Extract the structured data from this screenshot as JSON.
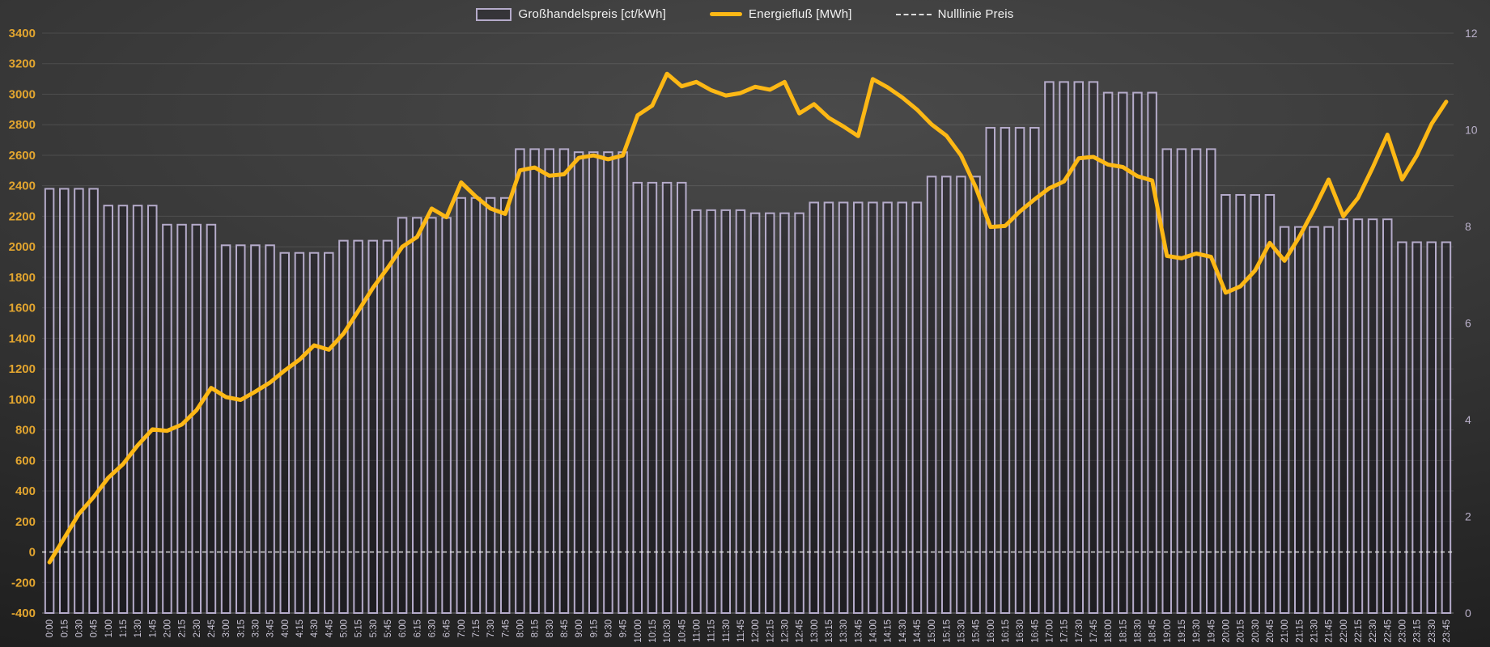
{
  "legend": {
    "price_label": "Großhandelspreis [ct/kWh]",
    "flow_label": "Energiefluß [MWh]",
    "zero_label": "Nulllinie Preis"
  },
  "colors": {
    "bar_stroke": "#b5abca",
    "bar_fill": "rgba(18,14,26,0.30)",
    "line": "#fdb815",
    "zero_line": "#e6e6e6",
    "grid": "rgba(255,255,255,0.11)",
    "axis_bottom": "rgba(255,255,255,0.35)",
    "left_tick_text": "#e2a52f",
    "right_tick_text": "#b9b0c9",
    "x_tick_text": "#ccc7d8"
  },
  "chart_data": {
    "type": "bar+line combo",
    "x_categories": [
      "0:00",
      "0:15",
      "0:30",
      "0:45",
      "1:00",
      "1:15",
      "1:30",
      "1:45",
      "2:00",
      "2:15",
      "2:30",
      "2:45",
      "3:00",
      "3:15",
      "3:30",
      "3:45",
      "4:00",
      "4:15",
      "4:30",
      "4:45",
      "5:00",
      "5:15",
      "5:30",
      "5:45",
      "6:00",
      "6:15",
      "6:30",
      "6:45",
      "7:00",
      "7:15",
      "7:30",
      "7:45",
      "8:00",
      "8:15",
      "8:30",
      "8:45",
      "9:00",
      "9:15",
      "9:30",
      "9:45",
      "10:00",
      "10:15",
      "10:30",
      "10:45",
      "11:00",
      "11:15",
      "11:30",
      "11:45",
      "12:00",
      "12:15",
      "12:30",
      "12:45",
      "13:00",
      "13:15",
      "13:30",
      "13:45",
      "14:00",
      "14:15",
      "14:30",
      "14:45",
      "15:00",
      "15:15",
      "15:30",
      "15:45",
      "16:00",
      "16:15",
      "16:30",
      "16:45",
      "17:00",
      "17:15",
      "17:30",
      "17:45",
      "18:00",
      "18:15",
      "18:30",
      "18:45",
      "19:00",
      "19:15",
      "19:30",
      "19:45",
      "20:00",
      "20:15",
      "20:30",
      "20:45",
      "21:00",
      "21:15",
      "21:30",
      "21:45",
      "22:00",
      "22:15",
      "22:30",
      "22:45",
      "23:00",
      "23:15",
      "23:30",
      "23:45"
    ],
    "series": [
      {
        "name": "Großhandelspreis [ct/kWh]",
        "type": "bar",
        "axis": "left",
        "values": [
          2380,
          2380,
          2380,
          2380,
          2270,
          2270,
          2270,
          2270,
          2145,
          2145,
          2145,
          2145,
          2010,
          2010,
          2010,
          2010,
          1960,
          1960,
          1960,
          1960,
          2040,
          2040,
          2040,
          2040,
          2190,
          2190,
          2190,
          2190,
          2320,
          2320,
          2320,
          2320,
          2640,
          2640,
          2640,
          2640,
          2620,
          2620,
          2620,
          2620,
          2420,
          2420,
          2420,
          2420,
          2240,
          2240,
          2240,
          2240,
          2220,
          2220,
          2220,
          2220,
          2290,
          2290,
          2290,
          2290,
          2290,
          2290,
          2290,
          2290,
          2460,
          2460,
          2460,
          2460,
          2780,
          2780,
          2780,
          2780,
          3080,
          3080,
          3080,
          3080,
          3010,
          3010,
          3010,
          3010,
          2640,
          2640,
          2640,
          2640,
          2340,
          2340,
          2340,
          2340,
          2130,
          2130,
          2130,
          2130,
          2180,
          2180,
          2180,
          2180,
          2030,
          2030,
          2030,
          2030
        ]
      },
      {
        "name": "Energiefluß [MWh]",
        "type": "line",
        "axis": "right",
        "values": [
          1.05,
          1.55,
          2.05,
          2.4,
          2.8,
          3.08,
          3.47,
          3.8,
          3.77,
          3.9,
          4.2,
          4.66,
          4.47,
          4.41,
          4.58,
          4.77,
          5.02,
          5.24,
          5.54,
          5.45,
          5.78,
          6.25,
          6.73,
          7.14,
          7.58,
          7.78,
          8.37,
          8.19,
          8.91,
          8.62,
          8.37,
          8.26,
          9.16,
          9.22,
          9.05,
          9.08,
          9.42,
          9.47,
          9.39,
          9.47,
          10.3,
          10.5,
          11.16,
          10.9,
          10.99,
          10.82,
          10.71,
          10.76,
          10.89,
          10.83,
          10.99,
          10.34,
          10.53,
          10.25,
          10.07,
          9.87,
          11.05,
          10.88,
          10.67,
          10.42,
          10.11,
          9.88,
          9.47,
          8.81,
          7.99,
          8.01,
          8.31,
          8.56,
          8.79,
          8.93,
          9.41,
          9.44,
          9.28,
          9.23,
          9.04,
          8.95,
          7.39,
          7.34,
          7.44,
          7.37,
          6.63,
          6.76,
          7.09,
          7.66,
          7.29,
          7.78,
          8.35,
          8.97,
          8.21,
          8.59,
          9.22,
          9.9,
          8.97,
          9.47,
          10.12,
          10.58
        ]
      },
      {
        "name": "Nulllinie Preis",
        "type": "dashed-horizontal-line",
        "axis": "left",
        "value": 0
      }
    ],
    "left_axis": {
      "min": -400,
      "max": 3400,
      "step": 200,
      "ticks": [
        "3400",
        "3200",
        "3000",
        "2800",
        "2600",
        "2400",
        "2200",
        "2000",
        "1800",
        "1600",
        "1400",
        "1200",
        "1000",
        "800",
        "600",
        "400",
        "200",
        "0",
        "-200",
        "-400"
      ]
    },
    "right_axis": {
      "min": 0,
      "max": 12,
      "step": 2,
      "ticks": [
        "12",
        "10",
        "8",
        "6",
        "4",
        "2",
        "0"
      ]
    },
    "grid": true,
    "legend_position": "top-center"
  }
}
